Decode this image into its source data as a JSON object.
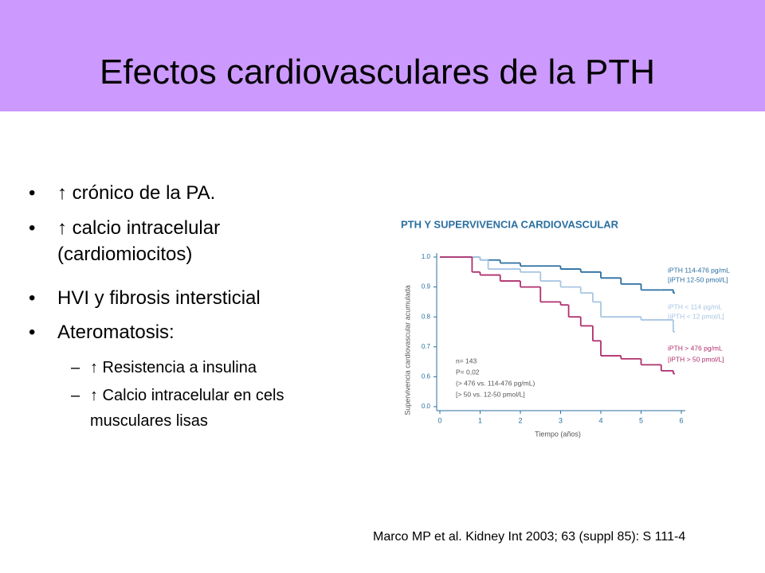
{
  "header": {
    "title": "Efectos cardiovasculares de la PTH"
  },
  "bullets": [
    {
      "text": "↑ crónico de la PA."
    },
    {
      "text": "↑ calcio intracelular (cardiomiocitos)"
    },
    {
      "text": "HVI y fibrosis intersticial"
    },
    {
      "text": "Ateromatosis:",
      "sub": [
        "↑ Resistencia a insulina",
        "↑ Calcio intracelular en cels musculares lisas"
      ]
    }
  ],
  "citation": "Marco MP et al. Kidney Int 2003; 63 (suppl 85): S 111-4",
  "chart_data": {
    "type": "step",
    "title": "PTH Y SUPERVIVENCIA CARDIOVASCULAR",
    "x_label": "Tiempo (años)",
    "y_label": "Supervivencia cardiovascular acumulada",
    "xlim": [
      0,
      6
    ],
    "xticks": [
      0,
      1,
      2,
      3,
      4,
      5,
      6
    ],
    "ylim": [
      0,
      1
    ],
    "yticks": [
      {
        "value": 0,
        "label": "0.0"
      },
      {
        "value": 0.6,
        "label": "0.6"
      },
      {
        "value": 0.7,
        "label": "0.7"
      },
      {
        "value": 0.8,
        "label": "0.8"
      },
      {
        "value": 0.9,
        "label": "0.9"
      },
      {
        "value": 1,
        "label": "1.0"
      }
    ],
    "annotations": [
      "n= 143",
      "P= 0,02",
      "(> 476 vs. 114-476 pg/mL)",
      "[> 50 vs. 12-50 pmol/L]"
    ],
    "series": [
      {
        "name": "iPTH 114-476 pg/mL",
        "unit_label": "[iPTH 12-50 pmol/L]",
        "color": "#2a6fa0",
        "x": [
          0,
          0.5,
          1,
          1.5,
          2,
          3,
          3.5,
          4,
          4.5,
          5,
          5.5,
          5.8
        ],
        "values": [
          1,
          1,
          0.99,
          0.98,
          0.97,
          0.96,
          0.95,
          0.93,
          0.91,
          0.89,
          0.89,
          0.88
        ]
      },
      {
        "name": "iPTH < 114 pg/mL",
        "unit_label": "[iPTH < 12 pmol/L]",
        "color": "#a9c6e2",
        "x": [
          0,
          0.5,
          1,
          1.2,
          2,
          2.5,
          3,
          3.5,
          3.8,
          4,
          5,
          5.8
        ],
        "values": [
          1,
          1,
          0.99,
          0.96,
          0.95,
          0.92,
          0.9,
          0.88,
          0.85,
          0.8,
          0.79,
          0.75
        ]
      },
      {
        "name": "iPTH > 476 pg/mL",
        "unit_label": "[iPTH > 50 pmol/L]",
        "color": "#b0306e",
        "x": [
          0,
          0.5,
          0.8,
          1,
          1.5,
          2,
          2.5,
          3,
          3.2,
          3.5,
          3.8,
          4,
          4.5,
          5,
          5.5,
          5.8
        ],
        "values": [
          1,
          1,
          0.95,
          0.94,
          0.92,
          0.9,
          0.85,
          0.84,
          0.8,
          0.77,
          0.72,
          0.67,
          0.66,
          0.64,
          0.62,
          0.61
        ]
      }
    ]
  }
}
